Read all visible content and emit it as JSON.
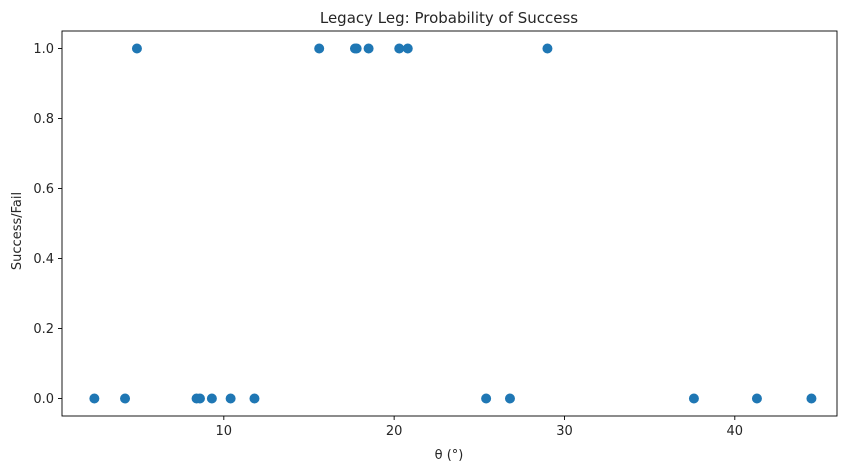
{
  "chart_data": {
    "type": "scatter",
    "title": "Legacy Leg: Probability of Success",
    "xlabel": "θ (°)",
    "ylabel": "Success/Fail",
    "xlim": [
      0.5,
      46.0
    ],
    "ylim": [
      -0.05,
      1.05
    ],
    "xticks": [
      "10",
      "20",
      "30",
      "40"
    ],
    "xtick_values": [
      10,
      20,
      30,
      40
    ],
    "yticks": [
      "0.0",
      "0.2",
      "0.4",
      "0.6",
      "0.8",
      "1.0"
    ],
    "ytick_values": [
      0.0,
      0.2,
      0.4,
      0.6,
      0.8,
      1.0
    ],
    "grid": false,
    "marker_color": "#1f77b4",
    "points": [
      {
        "x": 2.4,
        "y": 0
      },
      {
        "x": 4.2,
        "y": 0
      },
      {
        "x": 4.9,
        "y": 1
      },
      {
        "x": 8.4,
        "y": 0
      },
      {
        "x": 8.6,
        "y": 0
      },
      {
        "x": 9.3,
        "y": 0
      },
      {
        "x": 10.4,
        "y": 0
      },
      {
        "x": 11.8,
        "y": 0
      },
      {
        "x": 15.6,
        "y": 1
      },
      {
        "x": 17.7,
        "y": 1
      },
      {
        "x": 17.8,
        "y": 1
      },
      {
        "x": 18.5,
        "y": 1
      },
      {
        "x": 20.3,
        "y": 1
      },
      {
        "x": 20.8,
        "y": 1
      },
      {
        "x": 25.4,
        "y": 0
      },
      {
        "x": 26.8,
        "y": 0
      },
      {
        "x": 29.0,
        "y": 1
      },
      {
        "x": 37.6,
        "y": 0
      },
      {
        "x": 41.3,
        "y": 0
      },
      {
        "x": 44.5,
        "y": 0
      }
    ]
  }
}
